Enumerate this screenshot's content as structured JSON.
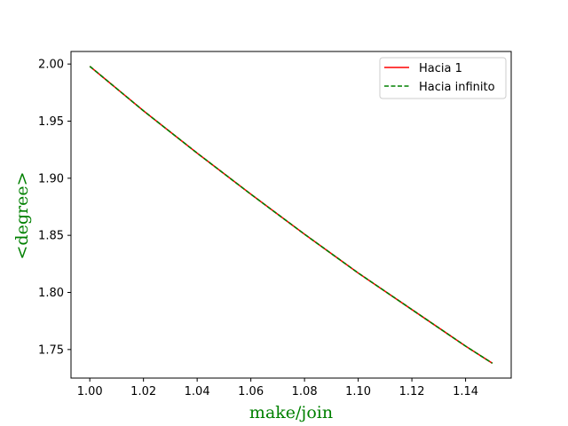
{
  "chart_data": {
    "type": "line",
    "title": "",
    "xlabel": "make/join",
    "ylabel": "<degree>",
    "label_color": "#008000",
    "xlim": [
      0.993,
      1.157
    ],
    "ylim": [
      1.725,
      2.011
    ],
    "x_ticks": [
      1.0,
      1.02,
      1.04,
      1.06,
      1.08,
      1.1,
      1.12,
      1.14
    ],
    "x_tick_labels": [
      "1.00",
      "1.02",
      "1.04",
      "1.06",
      "1.08",
      "1.10",
      "1.12",
      "1.14"
    ],
    "y_ticks": [
      1.75,
      1.8,
      1.85,
      1.9,
      1.95,
      2.0
    ],
    "y_tick_labels": [
      "1.75",
      "1.80",
      "1.85",
      "1.90",
      "1.95",
      "2.00"
    ],
    "grid": false,
    "legend_position": "top-right",
    "series": [
      {
        "name": "Hacia 1",
        "color": "#ff0000",
        "style": "solid",
        "x": [
          1.0,
          1.02,
          1.04,
          1.06,
          1.08,
          1.1,
          1.12,
          1.14,
          1.15
        ],
        "y": [
          1.998,
          1.959,
          1.922,
          1.886,
          1.851,
          1.817,
          1.785,
          1.753,
          1.738
        ]
      },
      {
        "name": "Hacia infinito",
        "color": "#008000",
        "style": "dashed",
        "x": [
          1.0,
          1.02,
          1.04,
          1.06,
          1.08,
          1.1,
          1.12,
          1.14,
          1.15
        ],
        "y": [
          1.998,
          1.959,
          1.922,
          1.886,
          1.851,
          1.817,
          1.785,
          1.753,
          1.738
        ]
      }
    ]
  }
}
